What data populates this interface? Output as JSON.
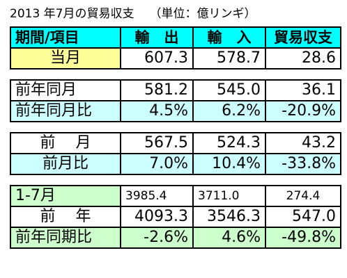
{
  "title": {
    "main": "2013 年7月の貿易収支",
    "unit": "（単位：億リンギ）"
  },
  "headers": [
    "期間/項目",
    "輸　出",
    "輸　入",
    "貿易収支"
  ],
  "rows": {
    "current": [
      "当月",
      "607.3",
      "578.7",
      "28.6"
    ],
    "prev_year_same_month": [
      "前年同月",
      "581.2",
      "545.0",
      "36.1"
    ],
    "prev_year_same_month_ratio": [
      "前年同月比",
      "4.5%",
      "6.2%",
      "-20.9%"
    ],
    "prev_month": [
      "前　 月",
      "567.5",
      "524.3",
      "43.2"
    ],
    "prev_month_ratio": [
      "前月比",
      "7.0%",
      "10.4%",
      "-33.8%"
    ],
    "jan_jul": [
      "1-7月",
      "3985.4",
      "3711.0",
      "274.4"
    ],
    "prev_year": [
      "前　 年",
      "4093.3",
      "3546.3",
      "547.0"
    ],
    "prev_year_period_ratio": [
      "前年同期比",
      "-2.6%",
      "4.6%",
      "-49.8%"
    ]
  },
  "colors": {
    "header": "#00ffff",
    "current_label": "#ffff99",
    "ratio_row": "#ccffff",
    "period_row": "#ccffcc"
  }
}
